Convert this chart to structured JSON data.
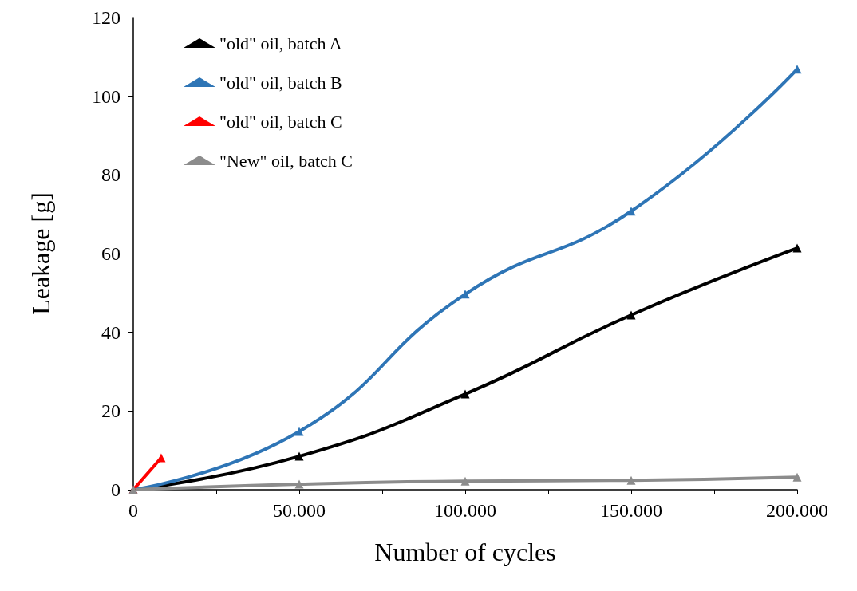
{
  "chart_data": {
    "type": "line",
    "xlabel": "Number of cycles",
    "ylabel": "Leakage [g]",
    "xlim": [
      0,
      200000
    ],
    "xticks": [
      0,
      {
        "value": 25000,
        "label": null
      },
      {
        "value": 50000,
        "label": "50.000"
      },
      {
        "value": 75000,
        "label": null
      },
      {
        "value": 100000,
        "label": "100.000"
      },
      {
        "value": 125000,
        "label": null
      },
      {
        "value": 150000,
        "label": "150.000"
      },
      {
        "value": 175000,
        "label": null
      },
      {
        "value": 200000,
        "label": "200.000"
      }
    ],
    "ylim": [
      0,
      120
    ],
    "yticks": [
      0,
      20,
      40,
      60,
      80,
      100,
      120
    ],
    "series": [
      {
        "name": "\"old\" oil, batch A",
        "color": "#000000",
        "x": [
          0,
          50000,
          100000,
          150000,
          200000
        ],
        "values": [
          0,
          8.5,
          24.3,
          44.4,
          61.4
        ]
      },
      {
        "name": "\"old\" oil, batch B",
        "color": "#2e75b6",
        "x": [
          0,
          50000,
          100000,
          150000,
          200000
        ],
        "values": [
          0,
          14.8,
          49.7,
          70.8,
          106.9
        ]
      },
      {
        "name": "\"old\" oil, batch C",
        "color": "#ff0000",
        "x": [
          0,
          8400
        ],
        "values": [
          0,
          8.1
        ]
      },
      {
        "name": "\"New\" oil, batch C",
        "color": "#8c8c8c",
        "x": [
          0,
          50000,
          100000,
          150000,
          200000
        ],
        "values": [
          0,
          1.4,
          2.2,
          2.4,
          3.2
        ]
      }
    ],
    "marker": "triangle",
    "grid": false,
    "legend": "top left"
  }
}
